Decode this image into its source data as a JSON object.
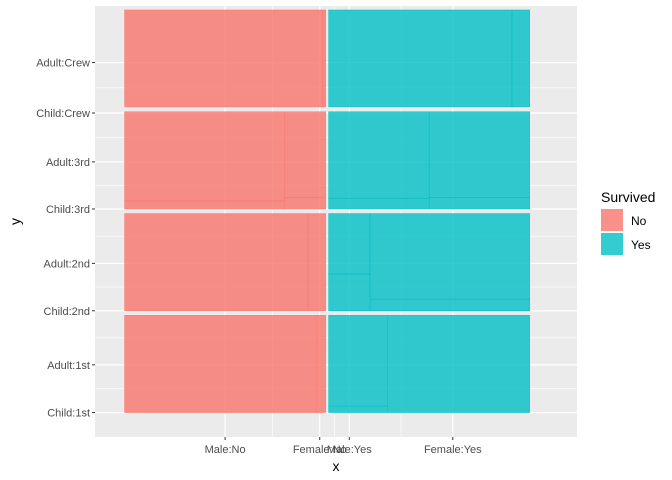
{
  "chart_data": {
    "type": "mosaic",
    "xlabel": "x",
    "ylabel": "y",
    "x_ticks": [
      {
        "label": "Male:No",
        "value": 0.34
      },
      {
        "label": "Female:No",
        "value": 0.66
      },
      {
        "label": "Male:Yes",
        "value": 0.76
      },
      {
        "label": "Female:Yes",
        "value": 1.11
      }
    ],
    "y_ticks": [
      {
        "label": "Child:1st",
        "value": 0.0
      },
      {
        "label": "Adult:1st",
        "value": 0.156
      },
      {
        "label": "Child:2nd",
        "value": 0.333
      },
      {
        "label": "Adult:2nd",
        "value": 0.488
      },
      {
        "label": "Child:3rd",
        "value": 0.666
      },
      {
        "label": "Adult:3rd",
        "value": 0.82
      },
      {
        "label": "Child:Crew",
        "value": 0.98
      },
      {
        "label": "Adult:Crew",
        "value": 1.145
      }
    ],
    "x_range": [
      -0.1,
      1.53
    ],
    "y_range": [
      -0.08,
      1.33
    ],
    "legend": {
      "title": "Survived",
      "entries": [
        {
          "label": "No",
          "color": "#F8766D"
        },
        {
          "label": "Yes",
          "color": "#00BFC4"
        }
      ],
      "position": "right"
    },
    "grid": true,
    "background": "#EBEBEB",
    "cells": [
      {
        "survived": "No",
        "class": "1st",
        "sex": "Male",
        "age": "Child",
        "x": [
          0.0,
          0.0
        ],
        "y": [
          0.0,
          0.0
        ]
      },
      {
        "survived": "No",
        "class": "1st",
        "sex": "Male",
        "age": "Adult",
        "x": [
          0.0,
          0.65
        ],
        "y": [
          0.0,
          0.318
        ]
      },
      {
        "survived": "No",
        "class": "1st",
        "sex": "Female",
        "age": "Adult",
        "x": [
          0.65,
          0.68
        ],
        "y": [
          0.0,
          0.318
        ]
      },
      {
        "survived": "No",
        "class": "2nd",
        "sex": "Male",
        "age": "Child",
        "x": [
          0.0,
          0.0
        ],
        "y": [
          0.333,
          0.333
        ]
      },
      {
        "survived": "No",
        "class": "2nd",
        "sex": "Male",
        "age": "Adult",
        "x": [
          0.0,
          0.62
        ],
        "y": [
          0.333,
          0.651
        ]
      },
      {
        "survived": "No",
        "class": "2nd",
        "sex": "Female",
        "age": "Adult",
        "x": [
          0.62,
          0.68
        ],
        "y": [
          0.333,
          0.651
        ]
      },
      {
        "survived": "No",
        "class": "3rd",
        "sex": "Male",
        "age": "Child",
        "x": [
          0.0,
          0.54
        ],
        "y": [
          0.666,
          0.692
        ]
      },
      {
        "survived": "No",
        "class": "3rd",
        "sex": "Male",
        "age": "Adult",
        "x": [
          0.0,
          0.54
        ],
        "y": [
          0.692,
          0.984
        ]
      },
      {
        "survived": "No",
        "class": "3rd",
        "sex": "Female",
        "age": "Child",
        "x": [
          0.54,
          0.68
        ],
        "y": [
          0.666,
          0.704
        ]
      },
      {
        "survived": "No",
        "class": "3rd",
        "sex": "Female",
        "age": "Adult",
        "x": [
          0.54,
          0.68
        ],
        "y": [
          0.704,
          0.984
        ]
      },
      {
        "survived": "No",
        "class": "Crew",
        "sex": "Male",
        "age": "Adult",
        "x": [
          0.0,
          0.67
        ],
        "y": [
          1.0,
          1.317
        ]
      },
      {
        "survived": "No",
        "class": "Crew",
        "sex": "Female",
        "age": "Adult",
        "x": [
          0.67,
          0.68
        ],
        "y": [
          1.0,
          1.317
        ]
      },
      {
        "survived": "Yes",
        "class": "1st",
        "sex": "Male",
        "age": "Child",
        "x": [
          0.69,
          0.89
        ],
        "y": [
          0.0,
          0.021
        ]
      },
      {
        "survived": "Yes",
        "class": "1st",
        "sex": "Male",
        "age": "Adult",
        "x": [
          0.69,
          0.89
        ],
        "y": [
          0.021,
          0.318
        ]
      },
      {
        "survived": "Yes",
        "class": "1st",
        "sex": "Female",
        "age": "Adult",
        "x": [
          0.89,
          1.37
        ],
        "y": [
          0.0,
          0.318
        ]
      },
      {
        "survived": "Yes",
        "class": "2nd",
        "sex": "Male",
        "age": "Child",
        "x": [
          0.69,
          0.83
        ],
        "y": [
          0.333,
          0.453
        ]
      },
      {
        "survived": "Yes",
        "class": "2nd",
        "sex": "Male",
        "age": "Adult",
        "x": [
          0.69,
          0.83
        ],
        "y": [
          0.453,
          0.651
        ]
      },
      {
        "survived": "Yes",
        "class": "2nd",
        "sex": "Female",
        "age": "Child",
        "x": [
          0.83,
          1.37
        ],
        "y": [
          0.333,
          0.371
        ]
      },
      {
        "survived": "Yes",
        "class": "2nd",
        "sex": "Female",
        "age": "Adult",
        "x": [
          0.83,
          1.37
        ],
        "y": [
          0.371,
          0.651
        ]
      },
      {
        "survived": "Yes",
        "class": "3rd",
        "sex": "Male",
        "age": "Child",
        "x": [
          0.69,
          1.03
        ],
        "y": [
          0.666,
          0.701
        ]
      },
      {
        "survived": "Yes",
        "class": "3rd",
        "sex": "Male",
        "age": "Adult",
        "x": [
          0.69,
          1.03
        ],
        "y": [
          0.701,
          0.984
        ]
      },
      {
        "survived": "Yes",
        "class": "3rd",
        "sex": "Female",
        "age": "Child",
        "x": [
          1.03,
          1.37
        ],
        "y": [
          0.666,
          0.704
        ]
      },
      {
        "survived": "Yes",
        "class": "3rd",
        "sex": "Female",
        "age": "Adult",
        "x": [
          1.03,
          1.37
        ],
        "y": [
          0.704,
          0.984
        ]
      },
      {
        "survived": "Yes",
        "class": "Crew",
        "sex": "Male",
        "age": "Adult",
        "x": [
          0.69,
          1.31
        ],
        "y": [
          1.0,
          1.317
        ]
      },
      {
        "survived": "Yes",
        "class": "Crew",
        "sex": "Female",
        "age": "Adult",
        "x": [
          1.31,
          1.37
        ],
        "y": [
          1.0,
          1.317
        ]
      }
    ]
  }
}
